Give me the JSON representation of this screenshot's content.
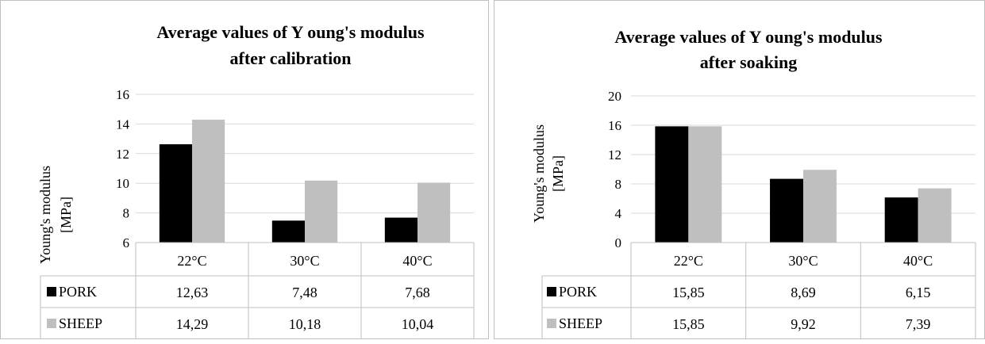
{
  "chart_data": [
    {
      "type": "bar",
      "title_lines": [
        "Average values of Y oung's modulus",
        "after calibration"
      ],
      "ylabel_lines": [
        "Young's modulus",
        "[MPa]"
      ],
      "xlabel": "",
      "categories": [
        "22°C",
        "30°C",
        "40°C"
      ],
      "ylim": [
        6,
        16
      ],
      "yticks": [
        6,
        8,
        10,
        12,
        14,
        16
      ],
      "grid": true,
      "legend": "data-table",
      "series": [
        {
          "name": "PORK",
          "color": "#000000",
          "values": [
            12.63,
            7.48,
            7.68
          ],
          "labels": [
            "12,63",
            "7,48",
            "7,68"
          ]
        },
        {
          "name": "SHEEP",
          "color": "#bfbfbf",
          "values": [
            14.29,
            10.18,
            10.04
          ],
          "labels": [
            "14,29",
            "10,18",
            "10,04"
          ]
        }
      ]
    },
    {
      "type": "bar",
      "title_lines": [
        "Average values of Y oung's modulus",
        "after soaking"
      ],
      "ylabel_lines": [
        "Young's modulus",
        "[MPa]"
      ],
      "xlabel": "",
      "categories": [
        "22°C",
        "30°C",
        "40°C"
      ],
      "ylim": [
        0,
        20
      ],
      "yticks": [
        0,
        4,
        8,
        12,
        16,
        20
      ],
      "grid": true,
      "legend": "data-table",
      "series": [
        {
          "name": "PORK",
          "color": "#000000",
          "values": [
            15.85,
            8.69,
            6.15
          ],
          "labels": [
            "15,85",
            "8,69",
            "6,15"
          ]
        },
        {
          "name": "SHEEP",
          "color": "#bfbfbf",
          "values": [
            15.85,
            9.92,
            7.39
          ],
          "labels": [
            "15,85",
            "9,92",
            "7,39"
          ]
        }
      ]
    }
  ]
}
